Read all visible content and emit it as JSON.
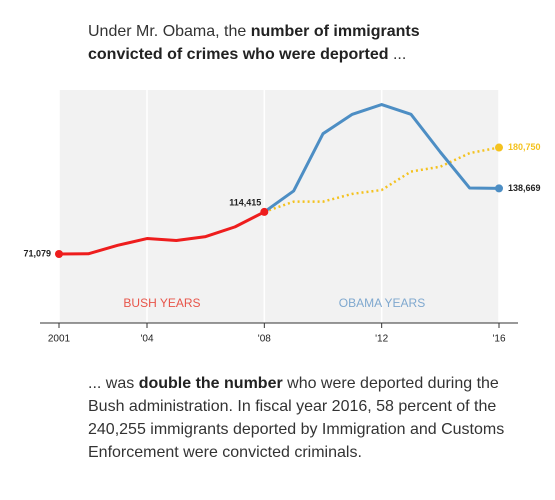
{
  "header": {
    "plain": "Under Mr. Obama, the ",
    "bold": "number of immigrants convicted of crimes who were deported",
    "end": " ..."
  },
  "chart_data": {
    "type": "line",
    "x": [
      2001,
      2002,
      2003,
      2004,
      2005,
      2006,
      2007,
      2008,
      2009,
      2010,
      2011,
      2012,
      2013,
      2014,
      2015,
      2016
    ],
    "xlim": [
      2001,
      2016
    ],
    "xticks": [
      {
        "value": 2001,
        "label": "2001"
      },
      {
        "value": 2004,
        "label": "'04"
      },
      {
        "value": 2008,
        "label": "'08"
      },
      {
        "value": 2012,
        "label": "'12"
      },
      {
        "value": 2016,
        "label": "'16"
      }
    ],
    "ylim": [
      0,
      240000
    ],
    "series": [
      {
        "color": "#ee1d1d",
        "label_color": "#222222",
        "dashed": false,
        "values": [
          71079,
          71300,
          80000,
          87000,
          85000,
          89000,
          99000,
          114415,
          null,
          null,
          null,
          null,
          null,
          null,
          null,
          null
        ],
        "value_labels": [
          "71,079",
          null,
          null,
          null,
          null,
          null,
          null,
          "114,415",
          null,
          null,
          null,
          null,
          null,
          null,
          null,
          null
        ]
      },
      {
        "color": "#f4c21f",
        "label_color": "#f4c21f",
        "dashed": true,
        "values": [
          null,
          null,
          null,
          null,
          null,
          null,
          null,
          114415,
          125000,
          125000,
          133000,
          137000,
          156000,
          161000,
          175000,
          180750
        ],
        "value_labels": [
          null,
          null,
          null,
          null,
          null,
          null,
          null,
          null,
          null,
          null,
          null,
          null,
          null,
          null,
          null,
          "180,750"
        ]
      },
      {
        "color": "#4d8ec4",
        "label_color": "#222222",
        "dashed": false,
        "values": [
          null,
          null,
          null,
          null,
          null,
          null,
          null,
          114415,
          136000,
          195000,
          215000,
          225000,
          215000,
          176000,
          139000,
          138669
        ],
        "value_labels": [
          null,
          null,
          null,
          null,
          null,
          null,
          null,
          null,
          null,
          null,
          null,
          null,
          null,
          null,
          null,
          "138,669"
        ]
      }
    ],
    "annotations": [
      {
        "text": "BUSH YEARS",
        "color": "#e8554a"
      },
      {
        "text": "OBAMA YEARS",
        "color": "#7fa8cf"
      }
    ]
  },
  "footer": {
    "plain": "... was ",
    "bold": "double the number",
    "end": " who were deported during the Bush administration. In fiscal year 2016, 58 percent of the 240,255 immigrants deported by Immigration and Customs Enforcement were convicted criminals."
  }
}
